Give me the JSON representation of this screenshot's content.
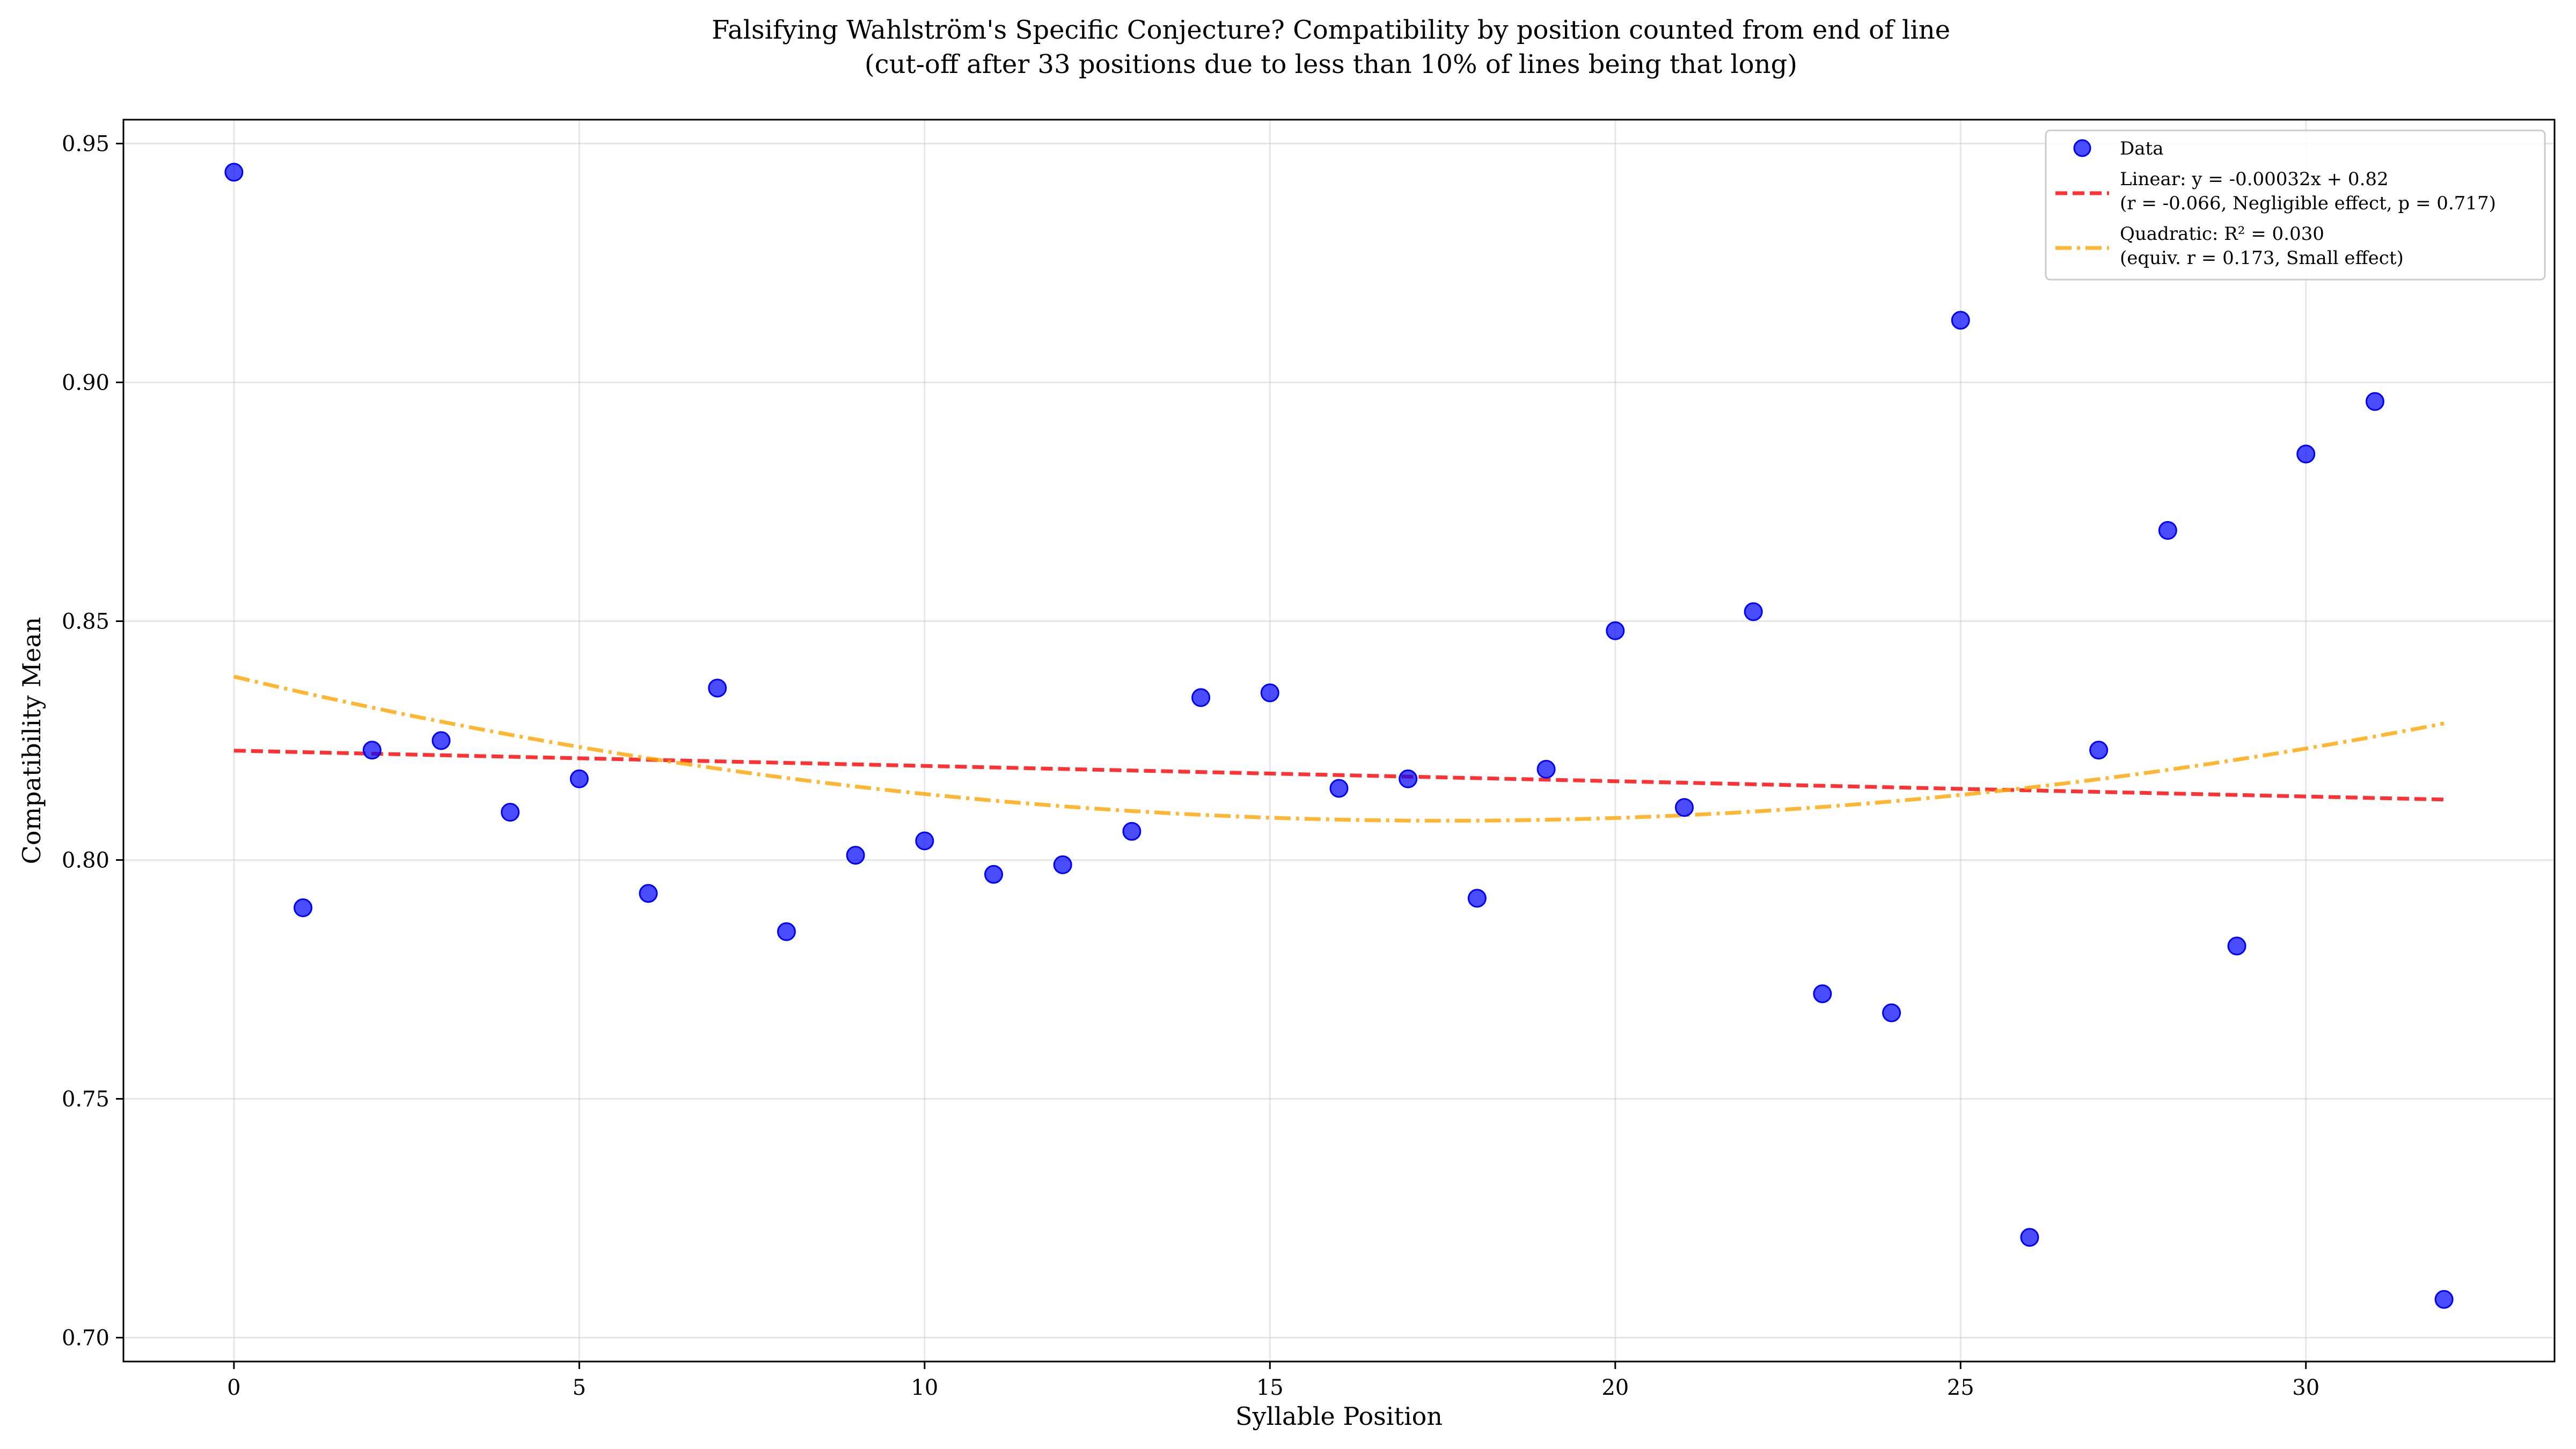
{
  "chart_data": {
    "type": "scatter",
    "title": "Falsifying Wahlström's Specific Conjecture? Compatibility by position counted from end of line",
    "subtitle": "(cut-off after 33 positions due to less than 10% of lines being that long)",
    "xlabel": "Syllable Position",
    "ylabel": "Compatibility Mean",
    "xlim": [
      -1.6,
      33.6
    ],
    "ylim": [
      0.695,
      0.955
    ],
    "xticks": [
      0,
      5,
      10,
      15,
      20,
      25,
      30
    ],
    "xtick_labels": [
      "0",
      "5",
      "10",
      "15",
      "20",
      "25",
      "30"
    ],
    "yticks": [
      0.7,
      0.75,
      0.8,
      0.85,
      0.9,
      0.95
    ],
    "ytick_labels": [
      "0.70",
      "0.75",
      "0.80",
      "0.85",
      "0.90",
      "0.95"
    ],
    "grid": true,
    "legend_position": "top-right",
    "series": [
      {
        "name": "Data",
        "kind": "scatter",
        "color": "#0000ff",
        "x": [
          0,
          1,
          2,
          3,
          4,
          5,
          6,
          7,
          8,
          9,
          10,
          11,
          12,
          13,
          14,
          15,
          16,
          17,
          18,
          19,
          20,
          21,
          22,
          23,
          24,
          25,
          26,
          27,
          28,
          29,
          30,
          31,
          32
        ],
        "y": [
          0.944,
          0.79,
          0.823,
          0.825,
          0.81,
          0.817,
          0.793,
          0.836,
          0.785,
          0.801,
          0.804,
          0.797,
          0.799,
          0.806,
          0.834,
          0.835,
          0.815,
          0.817,
          0.792,
          0.819,
          0.848,
          0.811,
          0.852,
          0.772,
          0.768,
          0.913,
          0.721,
          0.823,
          0.869,
          0.782,
          0.885,
          0.896,
          0.708
        ]
      },
      {
        "name": "Linear: y = -0.00032x + 0.82",
        "name_line2": "(r = -0.066, Negligible effect, p = 0.717)",
        "kind": "linear_fit",
        "color": "#ff0000",
        "slope": -0.00032,
        "intercept": 0.8229,
        "x_range": [
          0,
          32
        ]
      },
      {
        "name": "Quadratic: R² = 0.030",
        "name_line2": "(equiv. r = 0.173, Small effect)",
        "kind": "quadratic_fit",
        "color": "#ffa500",
        "a": 9.78e-05,
        "b": -0.003436,
        "c": 0.8384,
        "x_range": [
          0,
          32
        ]
      }
    ]
  }
}
